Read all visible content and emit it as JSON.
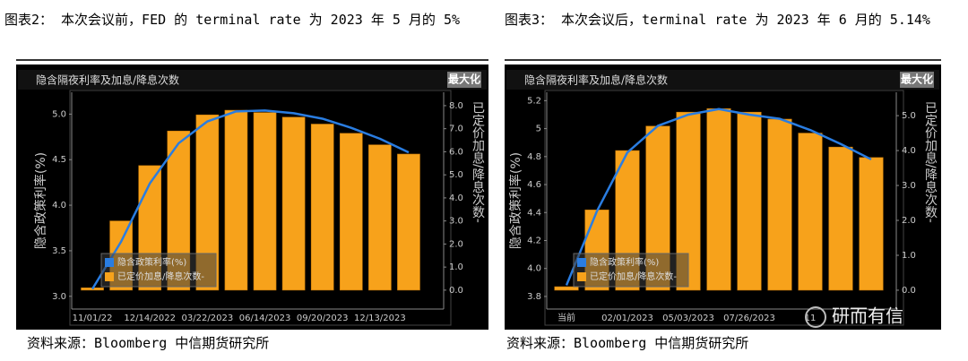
{
  "chart_data": [
    {
      "type": "bar",
      "title": "图表2： 本次会议前，FED 的 terminal rate 为 2023 年 5 月的 5%",
      "source": "资料来源：Bloomberg 中信期货研究所",
      "panel_title": "隐含隔夜利率及加息/降息次数",
      "button": "最大化",
      "ylabel": "隐含政策利率(%)",
      "y2label": "已定价加息/降息次数-",
      "categories": [
        "11/01/22",
        null,
        "12/14/2022",
        null,
        "03/22/2023",
        null,
        "06/14/2023",
        null,
        "09/20/2023",
        null,
        "12/13/2023",
        null
      ],
      "series": [
        {
          "name": "已定价加息/降息次数-",
          "type": "bar",
          "axis": "y2",
          "color": "#f7a21b",
          "values": [
            0.1,
            3.0,
            5.4,
            6.9,
            7.6,
            7.8,
            7.7,
            7.5,
            7.2,
            6.8,
            6.3,
            5.9
          ]
        },
        {
          "name": "隐含政策利率(%)",
          "type": "line",
          "color": "#2a7de1",
          "values": [
            3.08,
            3.6,
            4.24,
            4.68,
            4.92,
            5.03,
            5.04,
            5.01,
            4.95,
            4.85,
            4.73,
            4.58
          ]
        }
      ],
      "ylim": [
        2.86,
        5.24
      ],
      "yticks": [
        {
          "value": 3,
          "label": "3.0"
        },
        3.5,
        {
          "value": 4,
          "label": "4.0"
        },
        4.5,
        {
          "value": 5,
          "label": "5.0"
        }
      ],
      "y2lim": [
        -0.82,
        8.58
      ],
      "y2ticks": [
        {
          "value": 0,
          "label": "0.0"
        },
        {
          "value": 1,
          "label": "1.0"
        },
        {
          "value": 2,
          "label": "2.0"
        },
        {
          "value": 3,
          "label": "3.0"
        },
        {
          "value": 4,
          "label": "4.0"
        },
        {
          "value": 5,
          "label": "5.0"
        },
        {
          "value": 6,
          "label": "6.0"
        },
        {
          "value": 7,
          "label": "7.0"
        },
        {
          "value": 8,
          "label": "8.0"
        }
      ]
    },
    {
      "type": "bar",
      "title": "图表3： 本次会议后，terminal rate 为 2023 年 6 月的 5.14%",
      "source": "资料来源：Bloomberg 中信期货研究所",
      "panel_title": "隐含隔夜利率及加息/降息次数",
      "button": "最大化",
      "ylabel": "隐含政策利率(%)",
      "y2label": "已定价加息/降息次数-",
      "watermark": "研而有信",
      "categories": [
        "当前",
        null,
        "02/01/2023",
        null,
        "05/03/2023",
        null,
        "07/26/2023",
        null,
        "11",
        null,
        null
      ],
      "series": [
        {
          "name": "已定价加息/降息次数-",
          "type": "bar",
          "axis": "y2",
          "color": "#f7a21b",
          "values": [
            0.1,
            2.3,
            4.0,
            4.7,
            5.1,
            5.2,
            5.1,
            4.9,
            4.5,
            4.1,
            3.8
          ]
        },
        {
          "name": "隐含政策利率(%)",
          "type": "line",
          "color": "#2a7de1",
          "values": [
            3.88,
            4.41,
            4.83,
            5.02,
            5.1,
            5.14,
            5.1,
            5.07,
            4.99,
            4.89,
            4.78
          ]
        }
      ],
      "ylim": [
        3.71,
        5.26
      ],
      "yticks": [
        3.8,
        {
          "value": 4,
          "label": "4.0"
        },
        4.2,
        4.4,
        4.6,
        4.8,
        5.0,
        5.2
      ],
      "y2lim": [
        -0.54,
        5.67
      ],
      "y2ticks": [
        {
          "value": 0,
          "label": "0.0"
        },
        {
          "value": 1,
          "label": "1.0"
        },
        {
          "value": 2,
          "label": "2.0"
        },
        {
          "value": 3,
          "label": "3.0"
        },
        {
          "value": 4,
          "label": "4.0"
        },
        {
          "value": 5,
          "label": "5.0"
        }
      ]
    }
  ]
}
